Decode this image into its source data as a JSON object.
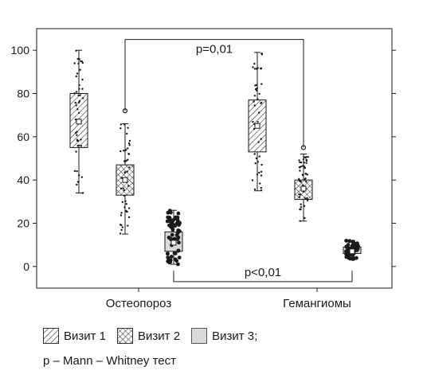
{
  "chart_data": {
    "type": "boxplot",
    "categories": [
      "Остеопороз",
      "Гемангиомы"
    ],
    "ylim": [
      -10,
      110
    ],
    "yticks": [
      0,
      20,
      40,
      60,
      80,
      100
    ],
    "xlabel": "",
    "ylabel": "",
    "grid": false,
    "series": [
      {
        "name": "Визит 1",
        "pattern": "diagonal-hatch",
        "boxes": [
          {
            "category": "Остеопороз",
            "min": 34,
            "q1": 55,
            "median": 67,
            "q3": 80,
            "max": 100,
            "outliers": []
          },
          {
            "category": "Гемангиомы",
            "min": 35,
            "q1": 53,
            "median": 65,
            "q3": 77,
            "max": 99,
            "outliers": []
          }
        ]
      },
      {
        "name": "Визит 2",
        "pattern": "cross-hatch",
        "boxes": [
          {
            "category": "Остеопороз",
            "min": 15,
            "q1": 33,
            "median": 40,
            "q3": 47,
            "max": 66,
            "outliers": [
              72
            ]
          },
          {
            "category": "Гемангиомы",
            "min": 21,
            "q1": 31,
            "median": 36,
            "q3": 40,
            "max": 52,
            "outliers": [
              55
            ]
          }
        ]
      },
      {
        "name": "Визит 3;",
        "pattern": "solid-gray",
        "boxes": [
          {
            "category": "Остеопороз",
            "min": 1,
            "q1": 7,
            "median": 11,
            "q3": 16,
            "max": 26,
            "outliers": []
          },
          {
            "category": "Гемангиомы",
            "min": 3,
            "q1": 6,
            "median": 7,
            "q3": 9,
            "max": 12,
            "outliers": []
          }
        ]
      }
    ],
    "annotations": [
      {
        "text": "p=0,01",
        "from": {
          "category": "Остеопороз",
          "series": "Визит 2",
          "y": 72
        },
        "to": {
          "category": "Гемангиомы",
          "series": "Визит 2",
          "y": 55
        },
        "bracket_y": 105
      },
      {
        "text": "p<0,01",
        "from": {
          "category": "Остеопороз",
          "series": "Визит 3;",
          "y": -2
        },
        "to": {
          "category": "Гемангиомы",
          "series": "Визит 3;",
          "y": -2
        },
        "bracket_y": -7
      }
    ]
  },
  "legend": {
    "items": [
      {
        "label": "Визит 1",
        "pattern": "diagonal-hatch"
      },
      {
        "label": "Визит 2",
        "pattern": "cross-hatch"
      },
      {
        "label": "Визит 3;",
        "pattern": "solid-gray"
      }
    ]
  },
  "note": "p – Mann – Whitney тест",
  "colors": {
    "box_fill_gray": "#d9d9d9",
    "ink": "#1a1a1a"
  }
}
